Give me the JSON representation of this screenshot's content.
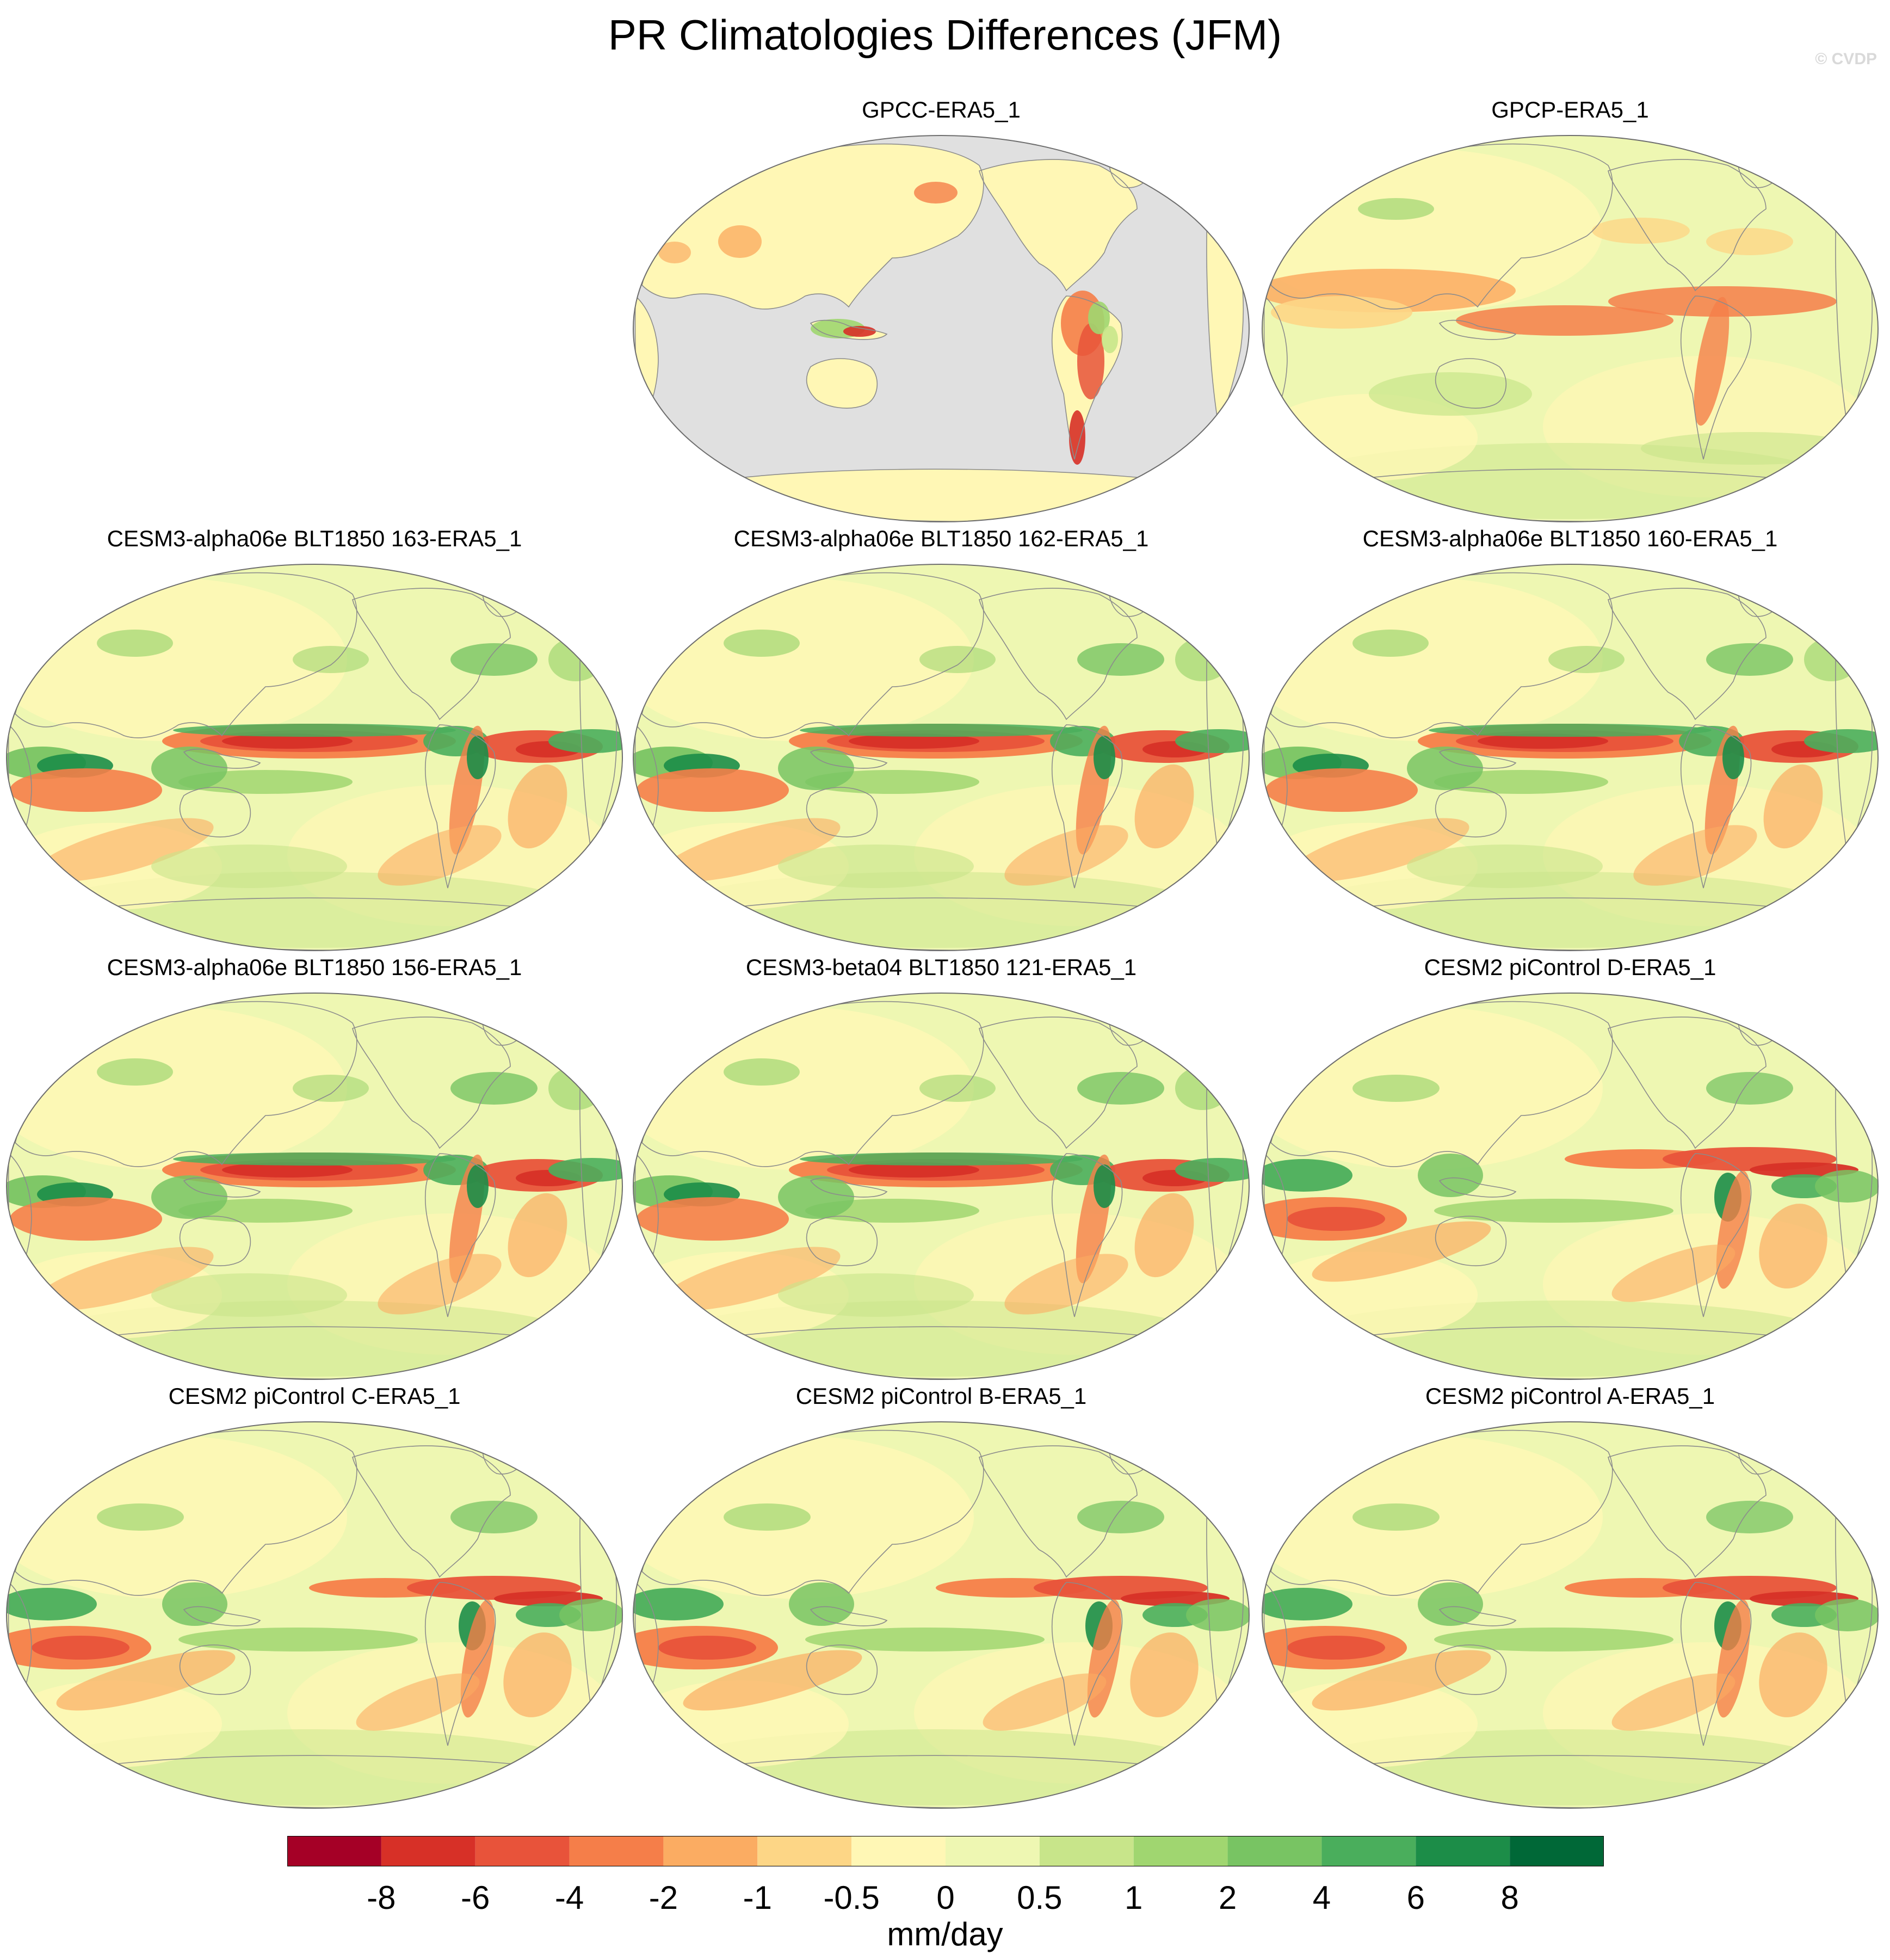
{
  "title": "PR Climatologies Differences (JFM)",
  "watermark": "© CVDP",
  "colorbar": {
    "unit": "mm/day",
    "colors": [
      "#a50026",
      "#d73027",
      "#e8533a",
      "#f57e49",
      "#fbac62",
      "#fdd686",
      "#fff7b5",
      "#eef7b2",
      "#c8e58a",
      "#a0d670",
      "#78c463",
      "#4aae5c",
      "#1c8d48",
      "#006837"
    ],
    "tick_labels": [
      "-8",
      "-6",
      "-4",
      "-2",
      "-1",
      "-0.5",
      "0",
      "0.5",
      "1",
      "2",
      "4",
      "6",
      "8"
    ]
  },
  "map_colors": {
    "land_mask": "#e0e0e0",
    "coast": "#8c8c8c",
    "background": "#f3f2a8"
  },
  "panels": [
    {
      "title": "GPCC-ERA5_1",
      "style": "gpcc"
    },
    {
      "title": "GPCP-ERA5_1",
      "style": "gpcp"
    },
    {
      "title": "CESM3-alpha06e BLT1850 163-ERA5_1",
      "style": "model"
    },
    {
      "title": "CESM3-alpha06e BLT1850 162-ERA5_1",
      "style": "model"
    },
    {
      "title": "CESM3-alpha06e BLT1850 160-ERA5_1",
      "style": "model"
    },
    {
      "title": "CESM3-alpha06e BLT1850 156-ERA5_1",
      "style": "model"
    },
    {
      "title": "CESM3-beta04 BLT1850 121-ERA5_1",
      "style": "model"
    },
    {
      "title": "CESM2 piControl D-ERA5_1",
      "style": "cesm2"
    },
    {
      "title": "CESM2 piControl C-ERA5_1",
      "style": "cesm2"
    },
    {
      "title": "CESM2 piControl B-ERA5_1",
      "style": "cesm2"
    },
    {
      "title": "CESM2 piControl A-ERA5_1",
      "style": "cesm2"
    }
  ]
}
